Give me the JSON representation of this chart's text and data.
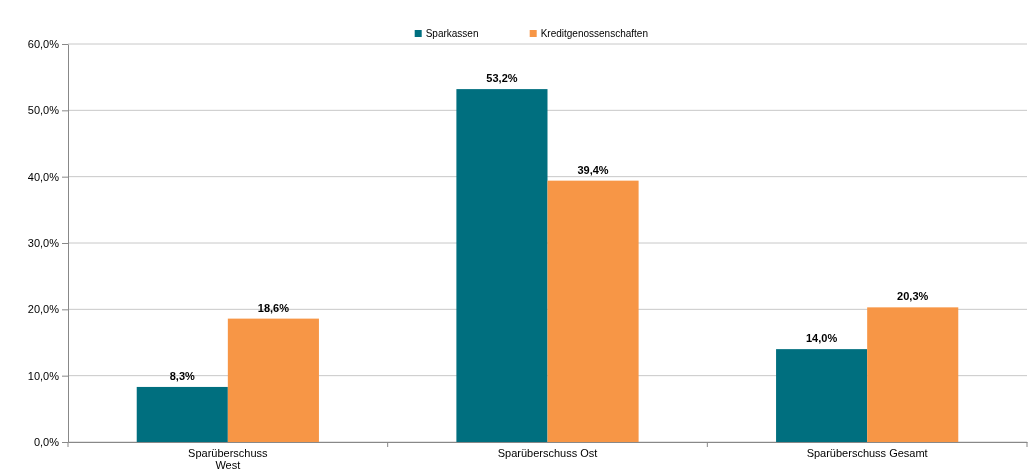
{
  "chart_data": {
    "type": "bar",
    "categories": [
      "Sparüberschuss\nWest",
      "Sparüberschuss Ost",
      "Sparüberschuss Gesamt"
    ],
    "series": [
      {
        "name": "Sparkassen",
        "color": "#006f7f",
        "values": [
          8.3,
          53.2,
          14.0
        ],
        "value_labels": [
          "8,3%",
          "53,2%",
          "14,0%"
        ]
      },
      {
        "name": "Kreditgenossenschaften",
        "color": "#f79646",
        "values": [
          18.6,
          39.4,
          20.3
        ],
        "value_labels": [
          "18,6%",
          "39,4%",
          "20,3%"
        ]
      }
    ],
    "ylim": [
      0,
      60
    ],
    "yticks": [
      {
        "value": 0,
        "label": "0,0%"
      },
      {
        "value": 10,
        "label": "10,0%"
      },
      {
        "value": 20,
        "label": "20,0%"
      },
      {
        "value": 30,
        "label": "30,0%"
      },
      {
        "value": 40,
        "label": "40,0%"
      },
      {
        "value": 50,
        "label": "50,0%"
      },
      {
        "value": 60,
        "label": "60,0%"
      }
    ],
    "grid": "y",
    "legend": "top"
  }
}
